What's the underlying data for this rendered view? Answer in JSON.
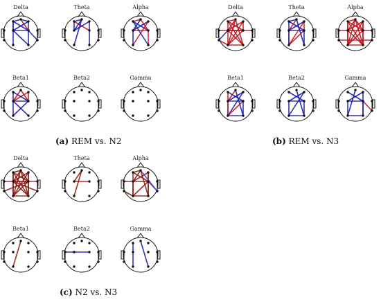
{
  "panels": [
    {
      "id": "a",
      "letter": "(a)",
      "caption": "REM vs. N2",
      "maps": [
        {
          "label": "Delta",
          "edges": [
            [
              0,
              5,
              "#1a1ab0"
            ],
            [
              0,
              6,
              "#1a1ab0"
            ],
            [
              5,
              6,
              "#1a1ab0"
            ],
            [
              1,
              2,
              "#1a1ab0"
            ],
            [
              0,
              2,
              "#1a1ab0"
            ],
            [
              0,
              9,
              "#1a1ab0"
            ],
            [
              5,
              10,
              "#1a1ab0"
            ],
            [
              1,
              10,
              "#1a1ab0"
            ],
            [
              2,
              6,
              "#c0141c"
            ],
            [
              6,
              8,
              "#1a1ab0"
            ],
            [
              1,
              5,
              "#1a1ab0"
            ]
          ]
        },
        {
          "label": "Theta",
          "edges": [
            [
              0,
              2,
              "#1a1ab0"
            ],
            [
              0,
              6,
              "#c0141c"
            ],
            [
              1,
              5,
              "#1a1ab0"
            ],
            [
              1,
              6,
              "#1a1ab0"
            ],
            [
              5,
              2,
              "#1a1ab0"
            ],
            [
              2,
              9,
              "#1a1ab0"
            ],
            [
              6,
              10,
              "#1a1ab0"
            ],
            [
              0,
              5,
              "#1a1ab0"
            ]
          ]
        },
        {
          "label": "Alpha",
          "edges": [
            [
              0,
              2,
              "#c0141c"
            ],
            [
              0,
              6,
              "#1a1ab0"
            ],
            [
              5,
              6,
              "#c0141c"
            ],
            [
              1,
              5,
              "#1a1ab0"
            ],
            [
              2,
              6,
              "#c0141c"
            ],
            [
              5,
              9,
              "#1a1ab0"
            ],
            [
              6,
              10,
              "#c0141c"
            ],
            [
              1,
              9,
              "#c0141c"
            ],
            [
              0,
              10,
              "#1a1ab0"
            ],
            [
              2,
              5,
              "#1a1ab0"
            ]
          ]
        },
        {
          "label": "Beta1",
          "edges": [
            [
              1,
              5,
              "#c0141c"
            ],
            [
              1,
              6,
              "#c0141c"
            ],
            [
              2,
              6,
              "#c0141c"
            ],
            [
              5,
              6,
              "#1a1ab0"
            ],
            [
              0,
              6,
              "#1a1ab0"
            ],
            [
              5,
              9,
              "#1a1ab0"
            ],
            [
              6,
              9,
              "#1a1ab0"
            ],
            [
              2,
              5,
              "#c0141c"
            ],
            [
              0,
              5,
              "#1a1ab0"
            ],
            [
              5,
              10,
              "#1a1ab0"
            ]
          ]
        },
        {
          "label": "Beta2",
          "edges": []
        },
        {
          "label": "Gamma",
          "edges": []
        }
      ]
    },
    {
      "id": "b",
      "letter": "(b)",
      "caption": "REM vs. N3",
      "maps": [
        {
          "label": "Delta",
          "edges": [
            [
              0,
              2,
              "#c0141c"
            ],
            [
              0,
              6,
              "#c0141c"
            ],
            [
              0,
              9,
              "#c0141c"
            ],
            [
              0,
              10,
              "#c0141c"
            ],
            [
              1,
              5,
              "#c0141c"
            ],
            [
              1,
              6,
              "#c0141c"
            ],
            [
              1,
              9,
              "#c0141c"
            ],
            [
              2,
              5,
              "#c0141c"
            ],
            [
              2,
              9,
              "#c0141c"
            ],
            [
              2,
              10,
              "#c0141c"
            ],
            [
              5,
              6,
              "#c0141c"
            ],
            [
              5,
              10,
              "#c0141c"
            ],
            [
              6,
              9,
              "#c0141c"
            ],
            [
              9,
              10,
              "#c0141c"
            ],
            [
              3,
              6,
              "#c0141c"
            ],
            [
              4,
              5,
              "#c0141c"
            ],
            [
              5,
              7,
              "#1a1ab0"
            ],
            [
              7,
              9,
              "#c0141c"
            ]
          ]
        },
        {
          "label": "Theta",
          "edges": [
            [
              0,
              2,
              "#1a1ab0"
            ],
            [
              0,
              6,
              "#1a1ab0"
            ],
            [
              1,
              5,
              "#1a1ab0"
            ],
            [
              2,
              5,
              "#c0141c"
            ],
            [
              5,
              6,
              "#1a1ab0"
            ],
            [
              5,
              9,
              "#c0141c"
            ],
            [
              6,
              10,
              "#1a1ab0"
            ],
            [
              1,
              9,
              "#c0141c"
            ],
            [
              2,
              10,
              "#1a1ab0"
            ],
            [
              0,
              9,
              "#1a1ab0"
            ],
            [
              6,
              9,
              "#c0141c"
            ],
            [
              1,
              6,
              "#c0141c"
            ]
          ]
        },
        {
          "label": "Alpha",
          "edges": [
            [
              0,
              2,
              "#c0141c"
            ],
            [
              0,
              5,
              "#c0141c"
            ],
            [
              0,
              6,
              "#c0141c"
            ],
            [
              0,
              9,
              "#c0141c"
            ],
            [
              0,
              10,
              "#c0141c"
            ],
            [
              1,
              5,
              "#c0141c"
            ],
            [
              1,
              6,
              "#c0141c"
            ],
            [
              1,
              9,
              "#c0141c"
            ],
            [
              1,
              10,
              "#c0141c"
            ],
            [
              2,
              5,
              "#c0141c"
            ],
            [
              2,
              6,
              "#c0141c"
            ],
            [
              2,
              9,
              "#c0141c"
            ],
            [
              2,
              10,
              "#c0141c"
            ],
            [
              5,
              6,
              "#c0141c"
            ],
            [
              5,
              9,
              "#c0141c"
            ],
            [
              5,
              10,
              "#c0141c"
            ],
            [
              6,
              9,
              "#c0141c"
            ],
            [
              6,
              10,
              "#c0141c"
            ],
            [
              9,
              10,
              "#c0141c"
            ],
            [
              4,
              6,
              "#c0141c"
            ],
            [
              3,
              5,
              "#c0141c"
            ],
            [
              7,
              8,
              "#c0141c"
            ]
          ]
        },
        {
          "label": "Beta1",
          "edges": [
            [
              0,
              6,
              "#1a1ab0"
            ],
            [
              1,
              5,
              "#1a1ab0"
            ],
            [
              5,
              6,
              "#1a1ab0"
            ],
            [
              2,
              5,
              "#c0141c"
            ],
            [
              5,
              9,
              "#1a1ab0"
            ],
            [
              6,
              10,
              "#1a1ab0"
            ],
            [
              0,
              9,
              "#c0141c"
            ],
            [
              2,
              10,
              "#1a1ab0"
            ],
            [
              9,
              10,
              "#1a1ab0"
            ],
            [
              1,
              9,
              "#1a1ab0"
            ],
            [
              6,
              9,
              "#c0141c"
            ]
          ]
        },
        {
          "label": "Beta2",
          "edges": [
            [
              0,
              6,
              "#1a1ab0"
            ],
            [
              1,
              5,
              "#1a1ab0"
            ],
            [
              5,
              6,
              "#1a1ab0"
            ],
            [
              5,
              9,
              "#1a1ab0"
            ],
            [
              6,
              10,
              "#1a1ab0"
            ],
            [
              9,
              10,
              "#1a1ab0"
            ],
            [
              1,
              9,
              "#1a1ab0"
            ],
            [
              2,
              10,
              "#1a1ab0"
            ]
          ]
        },
        {
          "label": "Gamma",
          "edges": [
            [
              0,
              6,
              "#1a1ab0"
            ],
            [
              1,
              5,
              "#1a1ab0"
            ],
            [
              5,
              6,
              "#1a1ab0"
            ],
            [
              5,
              9,
              "#1a1ab0"
            ],
            [
              6,
              10,
              "#1a1ab0"
            ],
            [
              9,
              10,
              "#1a1ab0"
            ],
            [
              1,
              10,
              "#1a1ab0"
            ],
            [
              2,
              9,
              "#1a1ab0"
            ],
            [
              6,
              8,
              "#c0141c"
            ]
          ]
        }
      ]
    },
    {
      "id": "c",
      "letter": "(c)",
      "caption": "N2 vs. N3",
      "maps": [
        {
          "label": "Delta",
          "edges": [
            [
              0,
              2,
              "#8a1a10"
            ],
            [
              0,
              5,
              "#8a1a10"
            ],
            [
              0,
              6,
              "#8a1a10"
            ],
            [
              0,
              9,
              "#8a1a10"
            ],
            [
              0,
              10,
              "#8a1a10"
            ],
            [
              1,
              5,
              "#8a1a10"
            ],
            [
              1,
              6,
              "#8a1a10"
            ],
            [
              1,
              9,
              "#8a1a10"
            ],
            [
              1,
              10,
              "#8a1a10"
            ],
            [
              2,
              5,
              "#8a1a10"
            ],
            [
              2,
              6,
              "#8a1a10"
            ],
            [
              2,
              9,
              "#8a1a10"
            ],
            [
              2,
              10,
              "#8a1a10"
            ],
            [
              5,
              6,
              "#8a1a10"
            ],
            [
              5,
              9,
              "#8a1a10"
            ],
            [
              5,
              10,
              "#8a1a10"
            ],
            [
              6,
              9,
              "#8a1a10"
            ],
            [
              6,
              10,
              "#8a1a10"
            ],
            [
              9,
              10,
              "#8a1a10"
            ],
            [
              3,
              6,
              "#c0141c"
            ],
            [
              4,
              5,
              "#c0141c"
            ],
            [
              7,
              6,
              "#8a1a10"
            ],
            [
              8,
              5,
              "#8a1a10"
            ]
          ]
        },
        {
          "label": "Theta",
          "edges": [
            [
              2,
              9,
              "#8a1a10"
            ],
            [
              2,
              5,
              "#8a1a10"
            ],
            [
              5,
              6,
              "#c0141c"
            ]
          ]
        },
        {
          "label": "Alpha",
          "edges": [
            [
              0,
              2,
              "#8a1a10"
            ],
            [
              0,
              6,
              "#8a1a10"
            ],
            [
              0,
              9,
              "#8a1a10"
            ],
            [
              1,
              5,
              "#8a1a10"
            ],
            [
              1,
              6,
              "#8a1a10"
            ],
            [
              1,
              10,
              "#8a1a10"
            ],
            [
              2,
              5,
              "#8a1a10"
            ],
            [
              2,
              10,
              "#8a1a10"
            ],
            [
              5,
              6,
              "#8a1a10"
            ],
            [
              5,
              9,
              "#8a1a10"
            ],
            [
              6,
              9,
              "#8a1a10"
            ],
            [
              6,
              10,
              "#8a1a10"
            ],
            [
              9,
              10,
              "#8a1a10"
            ],
            [
              2,
              8,
              "#5a3ab0"
            ],
            [
              6,
              8,
              "#5a3ab0"
            ],
            [
              3,
              5,
              "#8a1a10"
            ],
            [
              7,
              9,
              "#8a1a10"
            ]
          ]
        },
        {
          "label": "Beta1",
          "edges": [
            [
              2,
              9,
              "#8a1a10"
            ]
          ]
        },
        {
          "label": "Beta2",
          "edges": [
            [
              3,
              6,
              "#1a1ab0"
            ]
          ]
        },
        {
          "label": "Gamma",
          "edges": [
            [
              0,
              9,
              "#1a1ab0"
            ],
            [
              2,
              10,
              "#1a1ab0"
            ]
          ]
        }
      ]
    }
  ]
}
